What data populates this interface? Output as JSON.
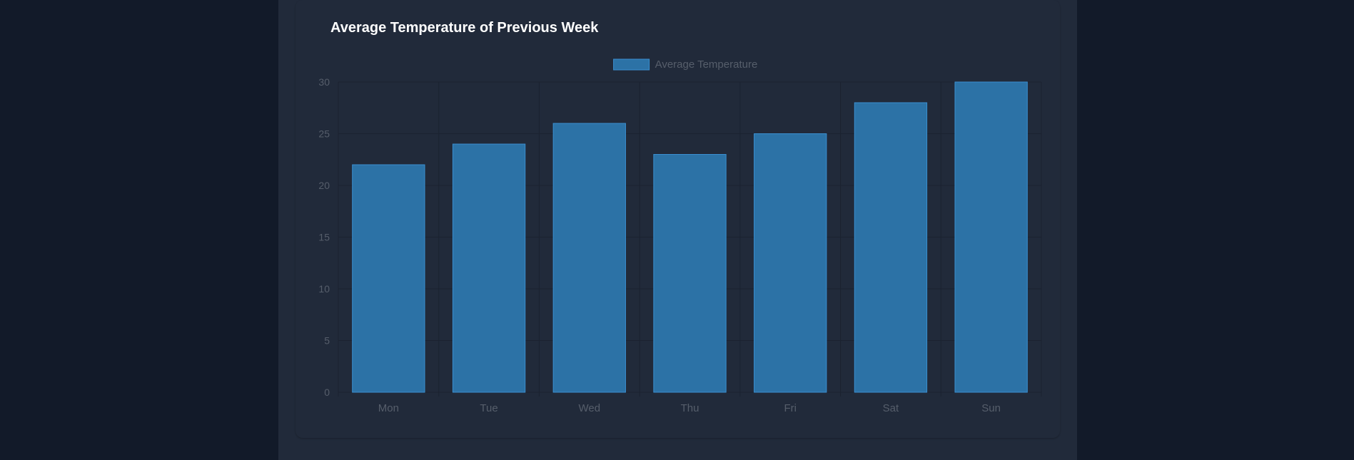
{
  "page": {
    "title": "Average Temperature of Previous Week"
  },
  "colors": {
    "page_background": "#121a29",
    "panel_background": "#212a3a",
    "bar_fill": "#2c72a6",
    "bar_border": "#3a8fd0",
    "grid": "#1b2230",
    "tick_label": "#565e6b",
    "title": "#ffffff"
  },
  "chart_data": {
    "type": "bar",
    "title": "Average Temperature of Previous Week",
    "categories": [
      "Mon",
      "Tue",
      "Wed",
      "Thu",
      "Fri",
      "Sat",
      "Sun"
    ],
    "series": [
      {
        "name": "Average Temperature",
        "values": [
          22,
          24,
          26,
          23,
          25,
          28,
          30
        ]
      }
    ],
    "xlabel": "",
    "ylabel": "",
    "ylim": [
      0,
      30
    ],
    "yticks": [
      0,
      5,
      10,
      15,
      20,
      25,
      30
    ],
    "grid": true,
    "legend_position": "top-center"
  }
}
